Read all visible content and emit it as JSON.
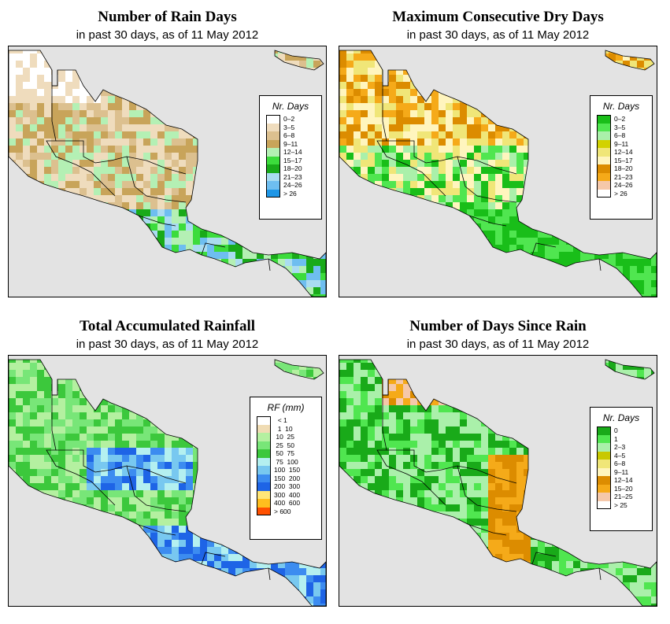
{
  "panels": [
    {
      "id": "rain_days",
      "title": "Number of Rain Days",
      "subtitle": "in past 30 days, as of  11 May 2012",
      "legend_title": "Nr. Days",
      "legend": [
        {
          "label": "0–2",
          "color": "#ffffff"
        },
        {
          "label": "3–5",
          "color": "#efdcbd"
        },
        {
          "label": "6–8",
          "color": "#dcc08f"
        },
        {
          "label": "9–11",
          "color": "#c8a45a"
        },
        {
          "label": "12–14",
          "color": "#b4f0b4"
        },
        {
          "label": "15–17",
          "color": "#3cdc3c"
        },
        {
          "label": "18–20",
          "color": "#19aa19"
        },
        {
          "label": "21–23",
          "color": "#aadcf0"
        },
        {
          "label": "24–26",
          "color": "#6ebef0"
        },
        {
          "label": "> 26",
          "color": "#1e96e6"
        }
      ]
    },
    {
      "id": "dry_days",
      "title": "Maximum Consecutive Dry Days",
      "subtitle": "in past 30 days, as of  11 May 2012",
      "legend_title": "Nr. Days",
      "legend": [
        {
          "label": "0–2",
          "color": "#19be19"
        },
        {
          "label": "3–5",
          "color": "#50e650"
        },
        {
          "label": "6–8",
          "color": "#aaf0aa"
        },
        {
          "label": "9–11",
          "color": "#d2d200"
        },
        {
          "label": "12–14",
          "color": "#f0e678"
        },
        {
          "label": "15–17",
          "color": "#fff5be"
        },
        {
          "label": "18–20",
          "color": "#dc8c00"
        },
        {
          "label": "21–23",
          "color": "#f5aa19"
        },
        {
          "label": "24–26",
          "color": "#f5c8aa"
        },
        {
          "label": "> 26",
          "color": "#ffffff"
        }
      ]
    },
    {
      "id": "rainfall",
      "title": "Total Accumulated Rainfall",
      "subtitle": "in past 30 days, as of  11 May 2012",
      "legend_title": "RF (mm)",
      "legend": [
        {
          "label": "  < 1",
          "color": "#ffffff"
        },
        {
          "label": "  1  10",
          "color": "#f0dcb4"
        },
        {
          "label": " 10  25",
          "color": "#b4f0a0"
        },
        {
          "label": " 25  50",
          "color": "#78e678"
        },
        {
          "label": " 50  75",
          "color": "#3cc83c"
        },
        {
          "label": " 75  100",
          "color": "#b4f0f0"
        },
        {
          "label": "100  150",
          "color": "#78c8f0"
        },
        {
          "label": "150  200",
          "color": "#3c8cf0"
        },
        {
          "label": "200  300",
          "color": "#1e64e6"
        },
        {
          "label": "300  400",
          "color": "#ffe678"
        },
        {
          "label": "400  600",
          "color": "#ffbe1e"
        },
        {
          "label": "> 600",
          "color": "#ff5000"
        }
      ]
    },
    {
      "id": "days_since_rain",
      "title": "Number of Days Since Rain",
      "subtitle": "in past 30 days, as of  11 May 2012",
      "legend_title": "Nr. Days",
      "legend": [
        {
          "label": "0",
          "color": "#19aa19"
        },
        {
          "label": "1",
          "color": "#50e650"
        },
        {
          "label": "2–3",
          "color": "#aaf0aa"
        },
        {
          "label": "4–5",
          "color": "#c8c800"
        },
        {
          "label": "6–8",
          "color": "#f0e678"
        },
        {
          "label": "9–11",
          "color": "#fff5be"
        },
        {
          "label": "12–14",
          "color": "#dc8c00"
        },
        {
          "label": "15–20",
          "color": "#f5aa19"
        },
        {
          "label": "21–25",
          "color": "#f5c8aa"
        },
        {
          "label": "> 25",
          "color": "#ffffff"
        }
      ]
    }
  ]
}
